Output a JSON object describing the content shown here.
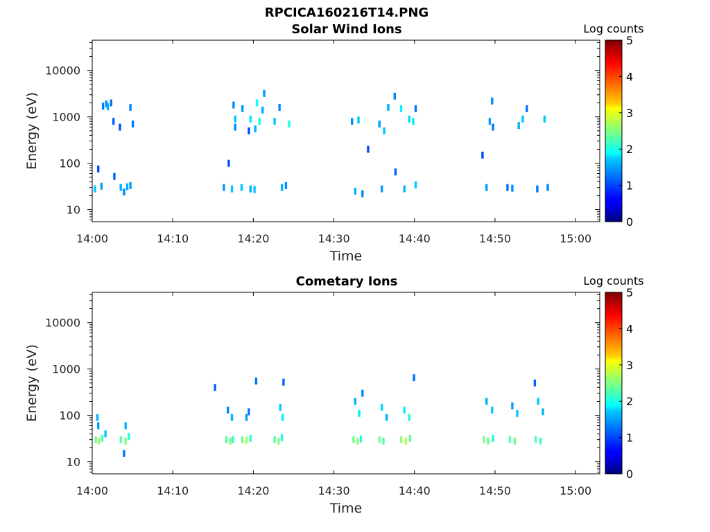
{
  "figure_title": "RPCICA160216T14.PNG",
  "chart_data": [
    {
      "type": "heatmap",
      "title": "Solar Wind Ions",
      "xlabel": "Time",
      "ylabel": "Energy (eV)",
      "y_scale": "log",
      "ylim": [
        5.5,
        45000
      ],
      "x_ticks": [
        "14:00",
        "14:10",
        "14:20",
        "14:30",
        "14:40",
        "14:50",
        "15:00"
      ],
      "xlim_minutes": [
        0,
        63
      ],
      "y_ticks": [
        {
          "value": 10,
          "label": "10"
        },
        {
          "value": 100,
          "label": "100"
        },
        {
          "value": 1000,
          "label": "1000"
        },
        {
          "value": 10000,
          "label": "10000"
        }
      ],
      "colorbar": {
        "label": "Log counts",
        "ticks": [
          "0",
          "1",
          "2",
          "3",
          "4",
          "5"
        ],
        "min": 0,
        "max": 5,
        "colormap": "jet"
      },
      "cells": [
        [
          1.2,
          1700,
          1.2
        ],
        [
          1.6,
          1900,
          1.3
        ],
        [
          1.8,
          1650,
          1.5
        ],
        [
          2.2,
          2000,
          1.2
        ],
        [
          2.5,
          800,
          1.1
        ],
        [
          3.3,
          600,
          1.0
        ],
        [
          4.6,
          1600,
          1.3
        ],
        [
          4.9,
          700,
          1.2
        ],
        [
          0.2,
          28,
          1.6
        ],
        [
          1.0,
          32,
          1.4
        ],
        [
          3.4,
          30,
          1.5
        ],
        [
          3.8,
          24,
          1.3
        ],
        [
          4.2,
          31,
          1.5
        ],
        [
          4.6,
          33,
          1.4
        ],
        [
          0.6,
          75,
          1.0
        ],
        [
          2.6,
          52,
          1.1
        ],
        [
          16.2,
          30,
          1.4
        ],
        [
          17.2,
          28,
          1.6
        ],
        [
          17.4,
          1800,
          1.3
        ],
        [
          17.6,
          900,
          1.6
        ],
        [
          17.6,
          600,
          1.3
        ],
        [
          18.5,
          1500,
          1.4
        ],
        [
          19.5,
          900,
          1.8
        ],
        [
          20.1,
          550,
          1.5
        ],
        [
          20.3,
          2000,
          1.9
        ],
        [
          20.6,
          800,
          2.0
        ],
        [
          21.0,
          1400,
          1.5
        ],
        [
          22.5,
          800,
          1.6
        ],
        [
          23.1,
          1600,
          1.3
        ],
        [
          24.3,
          700,
          2.0
        ],
        [
          18.4,
          30,
          1.6
        ],
        [
          19.5,
          28,
          1.5
        ],
        [
          20.0,
          27,
          1.6
        ],
        [
          23.4,
          30,
          1.5
        ],
        [
          23.9,
          33,
          1.3
        ],
        [
          21.2,
          3200,
          1.4
        ],
        [
          19.3,
          500,
          1.0
        ],
        [
          16.8,
          100,
          1.0
        ],
        [
          32.1,
          800,
          1.3
        ],
        [
          32.9,
          850,
          1.6
        ],
        [
          35.5,
          700,
          1.4
        ],
        [
          36.1,
          500,
          1.6
        ],
        [
          36.6,
          1600,
          1.5
        ],
        [
          37.4,
          2800,
          1.3
        ],
        [
          38.2,
          1500,
          1.8
        ],
        [
          39.2,
          900,
          1.7
        ],
        [
          40.0,
          1500,
          1.2
        ],
        [
          39.7,
          800,
          1.8
        ],
        [
          32.5,
          25,
          1.5
        ],
        [
          33.4,
          22,
          1.3
        ],
        [
          35.8,
          28,
          1.4
        ],
        [
          38.6,
          28,
          1.5
        ],
        [
          40.0,
          34,
          1.6
        ],
        [
          37.5,
          65,
          1.1
        ],
        [
          34.1,
          200,
          1.0
        ],
        [
          48.8,
          30,
          1.4
        ],
        [
          49.2,
          800,
          1.4
        ],
        [
          49.5,
          2200,
          1.3
        ],
        [
          49.6,
          600,
          1.2
        ],
        [
          51.4,
          30,
          1.2
        ],
        [
          52.0,
          29,
          1.3
        ],
        [
          52.8,
          650,
          1.5
        ],
        [
          53.3,
          900,
          1.6
        ],
        [
          53.8,
          1500,
          1.2
        ],
        [
          55.1,
          28,
          1.2
        ],
        [
          56.0,
          900,
          1.6
        ],
        [
          56.4,
          30,
          1.3
        ],
        [
          48.3,
          150,
          1.0
        ]
      ]
    },
    {
      "type": "heatmap",
      "title": "Cometary Ions",
      "xlabel": "Time",
      "ylabel": "Energy (eV)",
      "y_scale": "log",
      "ylim": [
        5.5,
        45000
      ],
      "x_ticks": [
        "14:00",
        "14:10",
        "14:20",
        "14:30",
        "14:40",
        "14:50",
        "15:00"
      ],
      "xlim_minutes": [
        0,
        63
      ],
      "y_ticks": [
        {
          "value": 10,
          "label": "10"
        },
        {
          "value": 100,
          "label": "100"
        },
        {
          "value": 1000,
          "label": "1000"
        },
        {
          "value": 10000,
          "label": "10000"
        }
      ],
      "colorbar": {
        "label": "Log counts",
        "ticks": [
          "0",
          "1",
          "2",
          "3",
          "4",
          "5"
        ],
        "min": 0,
        "max": 5,
        "colormap": "jet"
      },
      "cells": [
        [
          0.3,
          30,
          2.4
        ],
        [
          0.7,
          28,
          2.6
        ],
        [
          1.1,
          32,
          2.2
        ],
        [
          0.5,
          90,
          1.5
        ],
        [
          0.6,
          60,
          1.4
        ],
        [
          1.5,
          40,
          1.6
        ],
        [
          3.4,
          30,
          2.3
        ],
        [
          4.0,
          28,
          2.5
        ],
        [
          4.4,
          35,
          2.0
        ],
        [
          4.0,
          60,
          1.5
        ],
        [
          3.8,
          15,
          1.2
        ],
        [
          16.5,
          30,
          2.3
        ],
        [
          17.0,
          28,
          2.6
        ],
        [
          17.3,
          30,
          2.0
        ],
        [
          16.7,
          130,
          1.3
        ],
        [
          17.2,
          90,
          1.5
        ],
        [
          18.5,
          30,
          2.4
        ],
        [
          19.0,
          29,
          2.7
        ],
        [
          19.5,
          32,
          2.1
        ],
        [
          19.0,
          90,
          1.4
        ],
        [
          19.3,
          120,
          1.2
        ],
        [
          22.5,
          30,
          2.3
        ],
        [
          23.0,
          28,
          2.5
        ],
        [
          23.4,
          33,
          2.0
        ],
        [
          23.2,
          150,
          1.6
        ],
        [
          23.5,
          90,
          1.8
        ],
        [
          20.2,
          550,
          1.2
        ],
        [
          23.6,
          520,
          1.1
        ],
        [
          15.1,
          400,
          1.1
        ],
        [
          32.3,
          30,
          2.4
        ],
        [
          32.8,
          28,
          2.6
        ],
        [
          33.2,
          31,
          2.0
        ],
        [
          32.5,
          200,
          1.5
        ],
        [
          33.0,
          110,
          1.8
        ],
        [
          33.4,
          300,
          1.3
        ],
        [
          35.5,
          30,
          2.5
        ],
        [
          36.0,
          28,
          2.3
        ],
        [
          35.8,
          150,
          1.7
        ],
        [
          36.4,
          90,
          1.5
        ],
        [
          38.2,
          30,
          2.6
        ],
        [
          38.8,
          28,
          2.8
        ],
        [
          39.3,
          32,
          2.3
        ],
        [
          38.6,
          130,
          1.8
        ],
        [
          39.2,
          90,
          2.0
        ],
        [
          39.8,
          650,
          1.2
        ],
        [
          48.5,
          30,
          2.5
        ],
        [
          49.0,
          28,
          2.4
        ],
        [
          49.6,
          32,
          2.0
        ],
        [
          48.8,
          200,
          1.5
        ],
        [
          49.5,
          130,
          1.6
        ],
        [
          51.7,
          30,
          2.3
        ],
        [
          52.3,
          28,
          2.4
        ],
        [
          52.0,
          160,
          1.4
        ],
        [
          52.6,
          110,
          1.6
        ],
        [
          54.9,
          30,
          2.3
        ],
        [
          55.5,
          28,
          2.2
        ],
        [
          55.2,
          200,
          1.6
        ],
        [
          55.8,
          120,
          1.5
        ],
        [
          54.8,
          500,
          1.1
        ]
      ]
    }
  ]
}
